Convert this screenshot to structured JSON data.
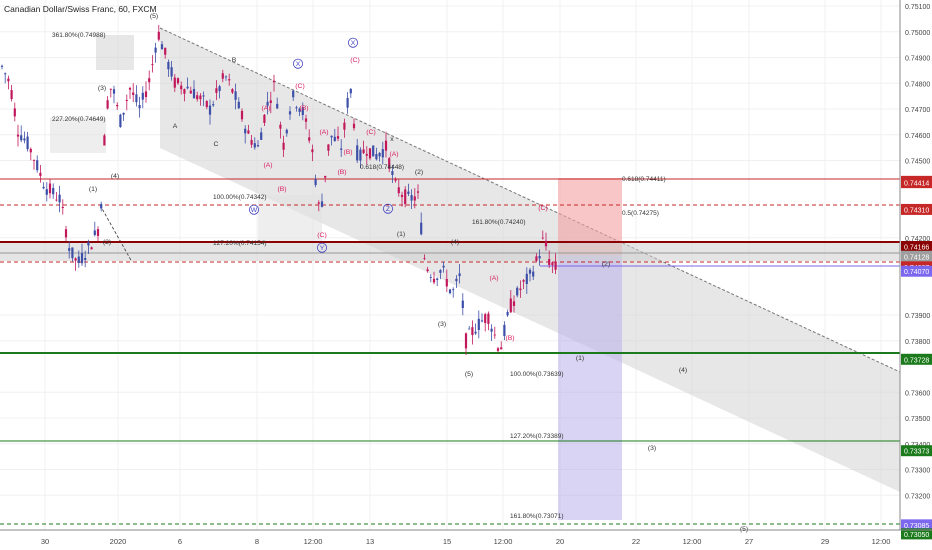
{
  "chart_data": {
    "type": "candlestick",
    "title": "Canadian Dollar/Swiss Franc, 60, FXCM",
    "y_axis_ticks": [
      "0.75100",
      "0.75000",
      "0.74900",
      "0.74800",
      "0.74700",
      "0.74600",
      "0.74500",
      "0.74200",
      "0.73900",
      "0.73800",
      "0.73600",
      "0.73500",
      "0.73400",
      "0.73300",
      "0.73200"
    ],
    "x_axis_ticks": [
      "30",
      "2020",
      "6",
      "8",
      "12:00",
      "13",
      "15",
      "12:00",
      "20",
      "22",
      "12:00",
      "27",
      "29",
      "12:00"
    ],
    "price_badges": [
      {
        "value": "0.74419",
        "color": "#c62828"
      },
      {
        "value": "0.74414",
        "color": "#c62828"
      },
      {
        "value": "0.74310",
        "color": "#c62828"
      },
      {
        "value": "0.74166",
        "color": "#8b0000"
      },
      {
        "value": "0.74128",
        "color": "#9e9e9e"
      },
      {
        "value": "0.74087",
        "color": "#c62828"
      },
      {
        "value": "0.74070",
        "color": "#7b68ee"
      },
      {
        "value": "0.73728",
        "color": "#1b7a1b"
      },
      {
        "value": "0.73373",
        "color": "#1b7a1b"
      },
      {
        "value": "0.73085",
        "color": "#7b68ee"
      },
      {
        "value": "0.73050",
        "color": "#1b7a1b"
      }
    ],
    "fib_labels": [
      {
        "text": "361.80%(0.74988)",
        "color": "#333333"
      },
      {
        "text": "227.20%(0.74649)",
        "color": "#333333"
      },
      {
        "text": "100.00%(0.74342)",
        "color": "#333333"
      },
      {
        "text": "127.20%(0.74154)",
        "color": "#333333"
      },
      {
        "text": "0.618(0.74448)",
        "color": "#333333"
      },
      {
        "text": "161.80%(0.74240)",
        "color": "#333333"
      },
      {
        "text": "0.618(0.74411)",
        "color": "#333333"
      },
      {
        "text": "0.5(0.74275)",
        "color": "#333333"
      },
      {
        "text": "100.00%(0.73639)",
        "color": "#333333"
      },
      {
        "text": "127.20%(0.73389)",
        "color": "#333333"
      },
      {
        "text": "161.80%(0.73071)",
        "color": "#333333"
      }
    ],
    "wave_labels": [
      {
        "text": "(5)",
        "color": "#333333"
      },
      {
        "text": "(3)",
        "color": "#333333"
      },
      {
        "text": "(4)",
        "color": "#333333"
      },
      {
        "text": "(1)",
        "color": "#333333"
      },
      {
        "text": "(2)",
        "color": "#333333"
      },
      {
        "text": "A",
        "color": "#333333"
      },
      {
        "text": "B",
        "color": "#333333"
      },
      {
        "text": "C",
        "color": "#333333"
      },
      {
        "text": "(A)",
        "color": "#d81b60"
      },
      {
        "text": "(C)",
        "color": "#d81b60"
      },
      {
        "text": "X",
        "color": "#4040c0"
      },
      {
        "text": "(B)",
        "color": "#d81b60"
      },
      {
        "text": "W",
        "color": "#4040c0"
      },
      {
        "text": "(C)",
        "color": "#d81b60"
      },
      {
        "text": "Y",
        "color": "#4040c0"
      },
      {
        "text": "X",
        "color": "#4040c0"
      },
      {
        "text": "(C)",
        "color": "#d81b60"
      },
      {
        "text": "(A)",
        "color": "#d81b60"
      },
      {
        "text": "(B)",
        "color": "#d81b60"
      },
      {
        "text": "(A)",
        "color": "#d81b60"
      },
      {
        "text": "(B)",
        "color": "#d81b60"
      },
      {
        "text": "(C)",
        "color": "#d81b60"
      },
      {
        "text": "(A)",
        "color": "#d81b60"
      },
      {
        "text": "(B)",
        "color": "#d81b60"
      },
      {
        "text": "x",
        "color": "#333333"
      },
      {
        "text": "Z",
        "color": "#4040c0"
      },
      {
        "text": "(2)",
        "color": "#333333"
      },
      {
        "text": "(1)",
        "color": "#333333"
      },
      {
        "text": "(4)",
        "color": "#333333"
      },
      {
        "text": "(3)",
        "color": "#333333"
      },
      {
        "text": "(5)",
        "color": "#333333"
      },
      {
        "text": "(A)",
        "color": "#d81b60"
      },
      {
        "text": "(B)",
        "color": "#d81b60"
      },
      {
        "text": "(C)",
        "color": "#d81b60"
      },
      {
        "text": "(1)",
        "color": "#333333"
      },
      {
        "text": "(2)",
        "color": "#333333"
      },
      {
        "text": "(4)",
        "color": "#333333"
      },
      {
        "text": "(3)",
        "color": "#333333"
      },
      {
        "text": "(5)",
        "color": "#333333"
      }
    ],
    "colors": {
      "up": "#3d4fa8",
      "down": "#c2185b",
      "channel": "#d0d0d0",
      "red": "#c62828",
      "green": "#1b7a1b",
      "purple": "#7b68ee",
      "text": "#333333"
    }
  }
}
